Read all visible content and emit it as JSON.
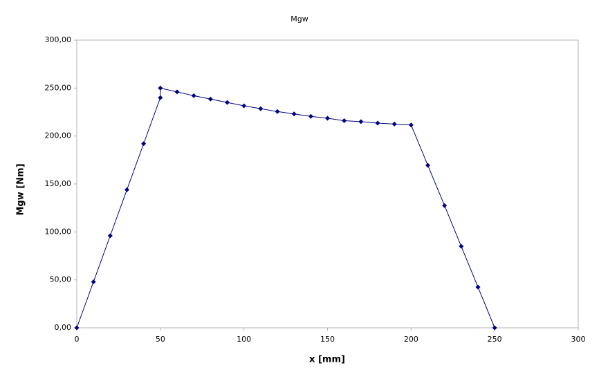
{
  "chart_data": {
    "type": "line",
    "title": "Mgw",
    "x_label": "x [mm]",
    "y_label": "Mgw [Nm]",
    "x": [
      0,
      10,
      20,
      30,
      40,
      50,
      50,
      60,
      70,
      80,
      90,
      100,
      110,
      120,
      130,
      140,
      150,
      160,
      170,
      180,
      190,
      200,
      210,
      220,
      230,
      240,
      250
    ],
    "values": [
      0,
      48,
      96,
      144,
      192,
      240,
      250,
      246,
      242,
      238.5,
      235,
      231.5,
      228.5,
      225.5,
      223,
      220.5,
      218.5,
      216,
      215,
      213.5,
      212.5,
      211.5,
      169.5,
      127.5,
      85,
      42.5,
      0
    ],
    "color": "#000080",
    "xlim": [
      0,
      300
    ],
    "xticks": [
      0,
      50,
      100,
      150,
      200,
      250,
      300
    ],
    "ylim": [
      0,
      300
    ],
    "yticks": [
      {
        "value": 0,
        "label": "0,00"
      },
      {
        "value": 50,
        "label": "50,00"
      },
      {
        "value": 100,
        "label": "100,00"
      },
      {
        "value": 150,
        "label": "150,00"
      },
      {
        "value": 200,
        "label": "200,00"
      },
      {
        "value": 250,
        "label": "250,00"
      },
      {
        "value": 300,
        "label": "300,00"
      }
    ],
    "grid": false
  }
}
